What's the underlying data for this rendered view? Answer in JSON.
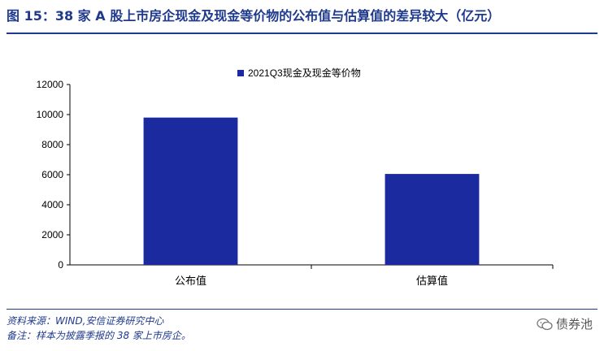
{
  "figure": {
    "title": "图 15：38 家 A 股上市房企现金及现金等价物的公布值与估算值的差异较大（亿元）"
  },
  "chart_data": {
    "type": "bar",
    "categories": [
      "公布值",
      "估算值"
    ],
    "series": [
      {
        "name": "2021Q3现金及现金等价物",
        "values": [
          9800,
          6050
        ],
        "color": "#1b2a9e"
      }
    ],
    "ylim": [
      0,
      12000
    ],
    "yticks": [
      0,
      2000,
      4000,
      6000,
      8000,
      10000,
      12000
    ],
    "xlabel": "",
    "ylabel": "",
    "grid": false,
    "legend_position": "top-center"
  },
  "footer": {
    "source": "资料来源：WIND,安信证券研究中心",
    "note": "备注：样本为披露季报的 38 家上市房企。",
    "watermark": "债券池"
  }
}
